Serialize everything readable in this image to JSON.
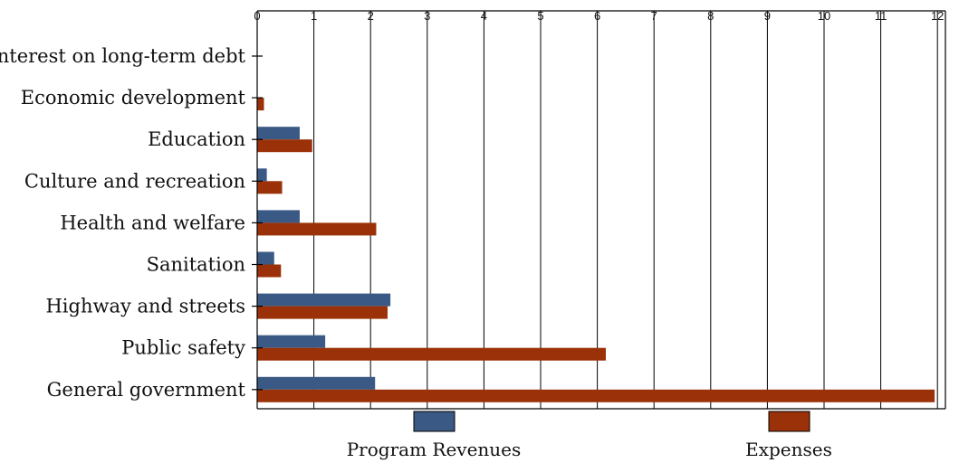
{
  "chart_data": {
    "type": "bar",
    "orientation": "horizontal",
    "title": "",
    "xlabel": "",
    "ylabel": "",
    "xlim": [
      0,
      12.3
    ],
    "ticks": [
      "0",
      "1",
      "2",
      "3",
      "4",
      "5",
      "6",
      "7",
      "8",
      "9",
      "10",
      "11",
      "12"
    ],
    "grid": true,
    "legend_position": "bottom",
    "categories": [
      "Interest on long-term debt",
      "Economic development",
      "Education",
      "Culture and recreation",
      "Health and welfare",
      "Sanitation",
      "Highway and streets",
      "Public safety",
      "General government"
    ],
    "series": [
      {
        "name": "Program Revenues",
        "color": "#3a5a85",
        "values": [
          0,
          0,
          0.75,
          0.17,
          0.75,
          0.3,
          2.35,
          1.2,
          2.08
        ]
      },
      {
        "name": "Expenses",
        "color": "#9b3108",
        "values": [
          0,
          0.12,
          0.97,
          0.44,
          2.1,
          0.42,
          2.3,
          6.15,
          11.95
        ]
      }
    ]
  }
}
